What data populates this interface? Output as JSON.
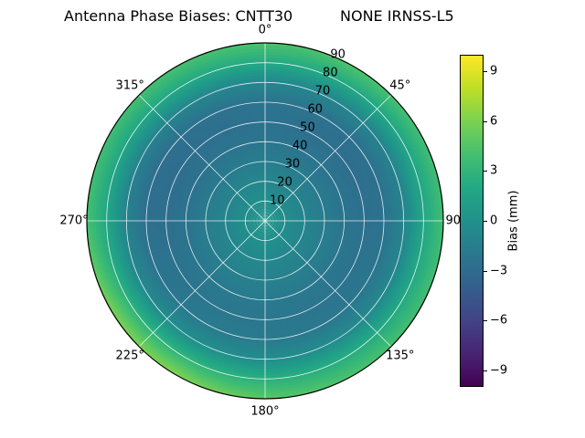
{
  "title": {
    "left": "Antenna Phase Biases: CNTT30",
    "right": "NONE IRNSS-L5"
  },
  "chart_data": {
    "type": "heatmap",
    "projection": "polar",
    "title": "Antenna Phase Biases: CNTT30        NONE IRNSS-L5",
    "rmax": 90,
    "angular_tick_degrees": [
      0,
      45,
      90,
      135,
      180,
      225,
      270,
      315
    ],
    "angular_tick_labels": [
      "0°",
      "45°",
      "90°",
      "135°",
      "180°",
      "225°",
      "270°",
      "315°"
    ],
    "radial_ticks": [
      10,
      20,
      30,
      40,
      50,
      60,
      70,
      80,
      90
    ],
    "radial_tick_labels": [
      "10",
      "20",
      "30",
      "40",
      "50",
      "60",
      "70",
      "80",
      "90"
    ],
    "radial_label_angle_deg": 22.5,
    "colorbar": {
      "label": "Bias (mm)",
      "tick_values": [
        9,
        6,
        3,
        0,
        -3,
        -6,
        -9
      ],
      "tick_labels": [
        "9",
        "6",
        "3",
        "0",
        "−3",
        "−6",
        "−9"
      ],
      "vmin": -10,
      "vmax": 10
    },
    "colormap": {
      "name": "viridis",
      "stops": [
        "#440154",
        "#482475",
        "#414487",
        "#355f8d",
        "#2a788e",
        "#21918c",
        "#22a884",
        "#44bf70",
        "#7ad151",
        "#bddf26",
        "#fde725"
      ]
    },
    "grid": {
      "azimuth_deg": [
        0,
        30,
        60,
        90,
        120,
        150,
        180,
        210,
        240,
        270,
        300,
        330
      ],
      "radius": [
        0,
        10,
        20,
        30,
        40,
        50,
        60,
        70,
        80,
        90
      ],
      "bias_mm": [
        [
          0.2,
          0.2,
          0.2,
          0.2,
          0.2,
          0.2,
          0.2,
          0.2,
          0.2,
          0.2,
          0.2,
          0.2
        ],
        [
          -0.2,
          -0.3,
          -0.4,
          -0.4,
          -0.3,
          -0.2,
          -0.1,
          -0.1,
          -0.2,
          -0.3,
          -0.3,
          -0.2
        ],
        [
          -0.9,
          -1.0,
          -1.1,
          -1.0,
          -0.9,
          -0.8,
          -0.7,
          -0.7,
          -0.8,
          -1.0,
          -1.0,
          -0.9
        ],
        [
          -1.6,
          -1.7,
          -1.8,
          -1.7,
          -1.5,
          -1.4,
          -1.3,
          -1.3,
          -1.5,
          -1.7,
          -1.8,
          -1.7
        ],
        [
          -2.2,
          -2.3,
          -2.4,
          -2.3,
          -2.1,
          -2.0,
          -1.9,
          -1.9,
          -2.1,
          -2.4,
          -2.5,
          -2.3
        ],
        [
          -2.5,
          -2.7,
          -2.8,
          -2.6,
          -2.4,
          -2.2,
          -2.1,
          -2.1,
          -2.4,
          -2.8,
          -2.9,
          -2.7
        ],
        [
          -2.3,
          -2.5,
          -2.6,
          -2.5,
          -2.2,
          -2.0,
          -1.8,
          -1.8,
          -2.2,
          -2.7,
          -2.8,
          -2.5
        ],
        [
          -0.8,
          -1.0,
          -1.2,
          -1.1,
          -0.8,
          -0.5,
          -0.3,
          -0.2,
          -0.6,
          -1.2,
          -1.3,
          -1.0
        ],
        [
          2.2,
          2.0,
          1.8,
          1.9,
          2.1,
          2.4,
          2.6,
          3.1,
          2.9,
          1.9,
          1.8,
          2.0
        ],
        [
          4.3,
          4.4,
          3.9,
          3.8,
          3.9,
          4.3,
          4.8,
          6.2,
          6.0,
          4.0,
          3.8,
          4.1
        ]
      ]
    }
  }
}
